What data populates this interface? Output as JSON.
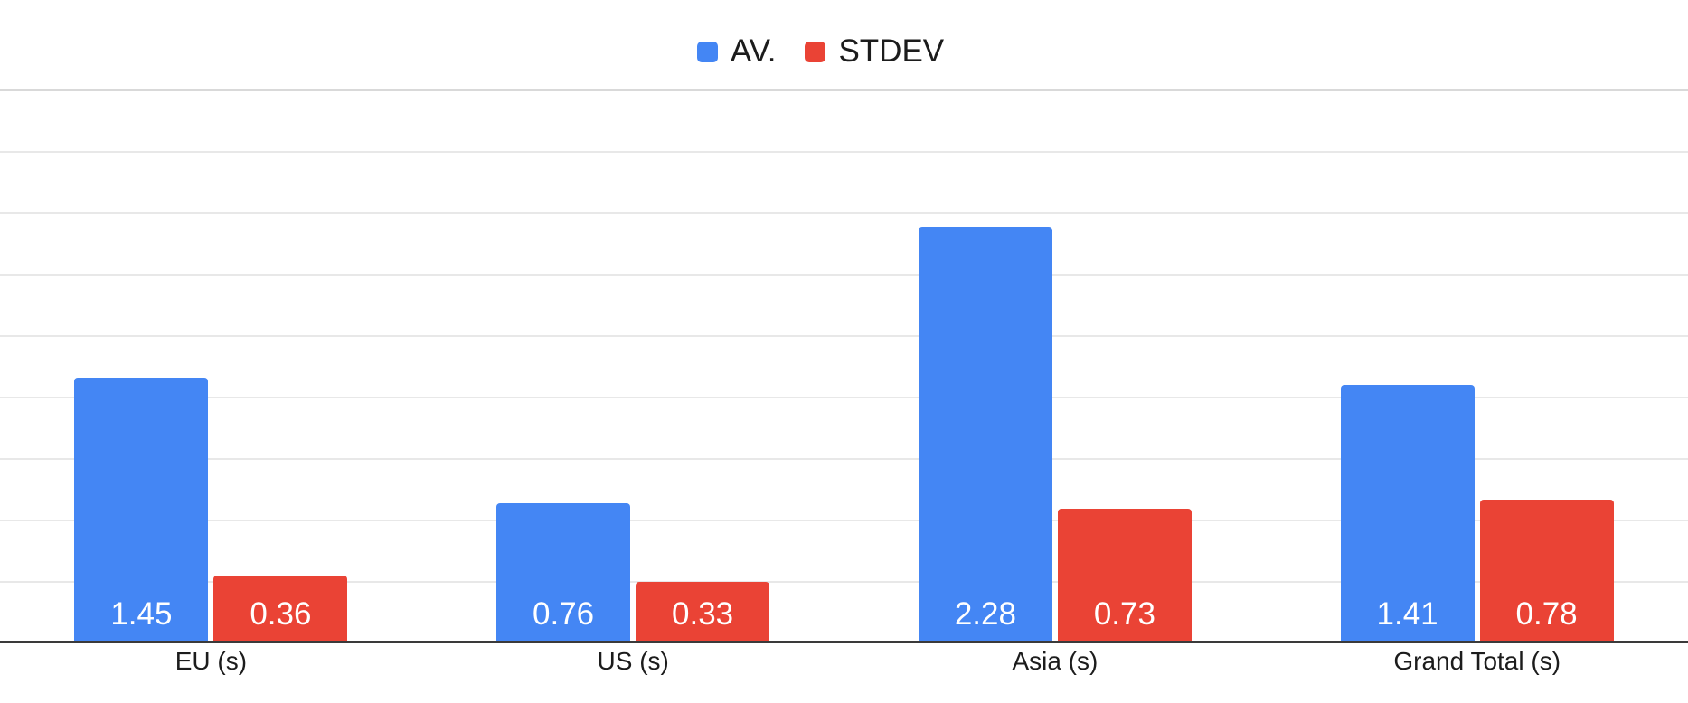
{
  "chart_data": {
    "type": "bar",
    "title": "",
    "categories": [
      "EU (s)",
      "US (s)",
      "Asia (s)",
      "Grand Total (s)"
    ],
    "series": [
      {
        "name": "AV.",
        "color": "#4486F4",
        "values": [
          1.45,
          0.76,
          2.28,
          1.41
        ]
      },
      {
        "name": "STDEV",
        "color": "#EA4335",
        "values": [
          0.36,
          0.33,
          0.73,
          0.78
        ]
      }
    ],
    "value_labels_shown": true,
    "value_label_decimals": 2,
    "value_label_color": "#ffffff",
    "xlabel": "",
    "ylabel": "",
    "ylim": [
      0,
      3
    ],
    "y_tick_labels_shown": false,
    "grid": true,
    "grid_color": "#e8e8e8",
    "grid_color_top": "#d9d9d9",
    "axis_color": "#3a3a3a",
    "background": "#ffffff",
    "legend_position": "top",
    "text_color": "#1c1c1c"
  }
}
